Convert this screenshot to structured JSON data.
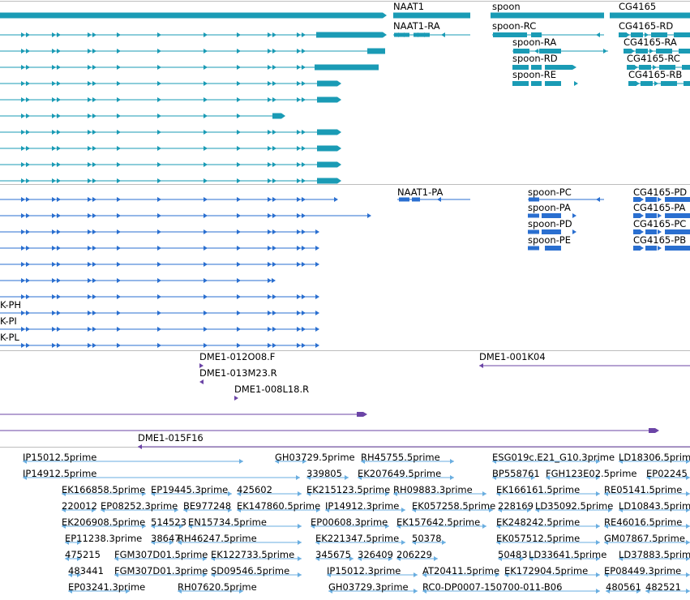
{
  "colors": {
    "gene": "#1a9bb5",
    "transcript": "#1a9bb5",
    "protein": "#2a6fd0",
    "clone": "#6b44a6",
    "est": "#6aaee0"
  },
  "gene_track": {
    "labels": [
      "NAAT1",
      "spoon",
      "CG4165"
    ]
  },
  "transcript_track": {
    "labels": [
      "NAAT1-RA",
      "spoon-RC",
      "spoon-RA",
      "spoon-RD",
      "spoon-RE",
      "CG4165-RD",
      "CG4165-RA",
      "CG4165-RC",
      "CG4165-RB"
    ]
  },
  "protein_track": {
    "labels": [
      "NAAT1-PA",
      "spoon-PC",
      "spoon-PA",
      "spoon-PD",
      "spoon-PE",
      "CG4165-PD",
      "CG4165-PA",
      "CG4165-PC",
      "CG4165-PB",
      "K-PH",
      "K-PI",
      "K-PL"
    ]
  },
  "clone_track": {
    "labels": [
      "DME1-012O08.F",
      "DME1-013M23.R",
      "DME1-008L18.R",
      "DME1-001K04",
      "DME1-015F16"
    ]
  },
  "est_track": {
    "labels": [
      "IP15012.5prime",
      "GH03729.5prime",
      "RH45755.5prime",
      "ESG019c.E21_G10.3prime",
      "LD18306.5prime",
      "IP14912.5prime",
      "339805",
      "EK207649.5prime",
      "BP558761",
      "FGH123E02.5prime",
      "EP02245",
      "EK166858.5prime",
      "EP19445.3prime",
      "425602",
      "EK215123.5prime",
      "RH09883.3prime",
      "EK166161.5prime",
      "RE05141.5prime",
      "220012",
      "EP08252.3prime",
      "BE977248",
      "EK147860.5prime",
      "IP14912.3prime",
      "EK057258.5prime",
      "228169",
      "LD35092.5prime",
      "LD10843.5prime",
      "EK206908.5prime",
      "514523",
      "EN15734.5prime",
      "EP00608.3prime",
      "EK157642.5prime",
      "EK248242.5prime",
      "RE46016.5prime",
      "EP11238.3prime",
      "38647",
      "RH46247.5prime",
      "EK221347.5prime",
      "50378",
      "EK057512.5prime",
      "GM07867.5prime",
      "475215",
      "FGM307D01.5prime",
      "EK122733.5prime",
      "345675",
      "326409",
      "206229",
      "50483",
      "LD33641.5prime",
      "LD37883.5prime",
      "483441",
      "FGM307D01.3prime",
      "SD09546.5prime",
      "IP15012.3prime",
      "AT20411.5prime",
      "EK172904.5prime",
      "EP08449.3prime",
      "EP03241.3prime",
      "RH07620.5prime",
      "GH03729.3prime",
      "RC0-DP0007-150700-011-B06",
      "480561",
      "482521"
    ]
  }
}
